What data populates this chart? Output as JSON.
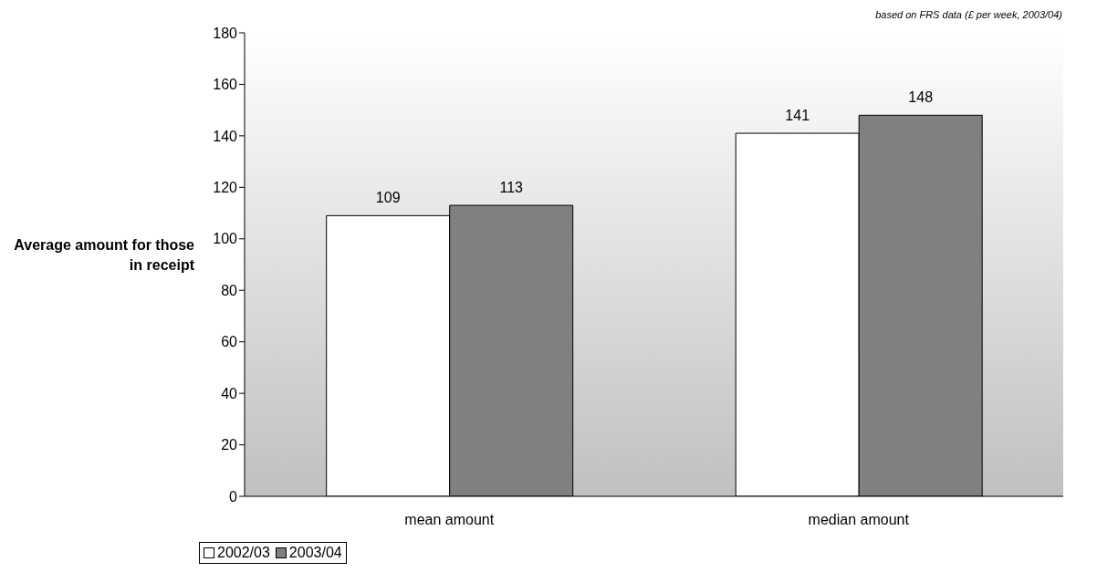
{
  "chart_data": {
    "type": "bar",
    "ylabel": "Average amount for those in receipt",
    "annotations": [
      "based on FRS data (£ per week, 2003/04)"
    ],
    "categories": [
      "mean amount",
      "median amount"
    ],
    "series": [
      {
        "name": "2002/03",
        "color": "#ffffff",
        "values": [
          109,
          141
        ]
      },
      {
        "name": "2003/04",
        "color": "#808080",
        "values": [
          113,
          148
        ]
      }
    ],
    "ylim": [
      0,
      180
    ],
    "yticks": [
      0,
      20,
      40,
      60,
      80,
      100,
      120,
      140,
      160,
      180
    ],
    "grid": false,
    "legend": "bottom",
    "data_labels": true
  }
}
